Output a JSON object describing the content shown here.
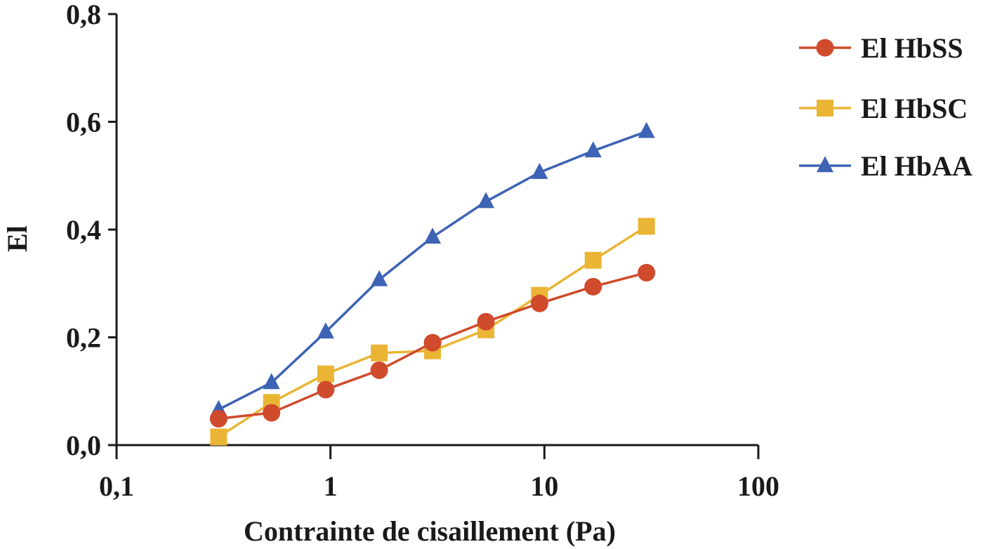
{
  "chart_data": {
    "type": "line",
    "xlabel": "Contrainte de cisaillement (Pa)",
    "ylabel": "El",
    "xscale": "log",
    "xlim": [
      0.1,
      100
    ],
    "ylim": [
      0.0,
      0.8
    ],
    "xticks": [
      0.1,
      1,
      10,
      100
    ],
    "xtick_labels": [
      "0,1",
      "1",
      "10",
      "100"
    ],
    "yticks": [
      0.0,
      0.2,
      0.4,
      0.6,
      0.8
    ],
    "ytick_labels": [
      "0,0",
      "0,2",
      "0,4",
      "0,6",
      "0,8"
    ],
    "grid": false,
    "legend_position": "right",
    "x": [
      0.3,
      0.53,
      0.95,
      1.69,
      3.0,
      5.33,
      9.49,
      16.9,
      30.0
    ],
    "series": [
      {
        "name": "El HbSS",
        "color": "#d04a2c",
        "marker": "circle",
        "values": [
          0.049,
          0.06,
          0.103,
          0.139,
          0.19,
          0.229,
          0.263,
          0.294,
          0.32
        ]
      },
      {
        "name": "El HbSC",
        "color": "#eab534",
        "marker": "square",
        "values": [
          0.015,
          0.079,
          0.132,
          0.171,
          0.175,
          0.214,
          0.278,
          0.343,
          0.406
        ]
      },
      {
        "name": "El HbAA",
        "color": "#3d63b4",
        "marker": "triangle",
        "values": [
          0.066,
          0.116,
          0.21,
          0.307,
          0.386,
          0.452,
          0.506,
          0.546,
          0.582
        ]
      }
    ]
  }
}
